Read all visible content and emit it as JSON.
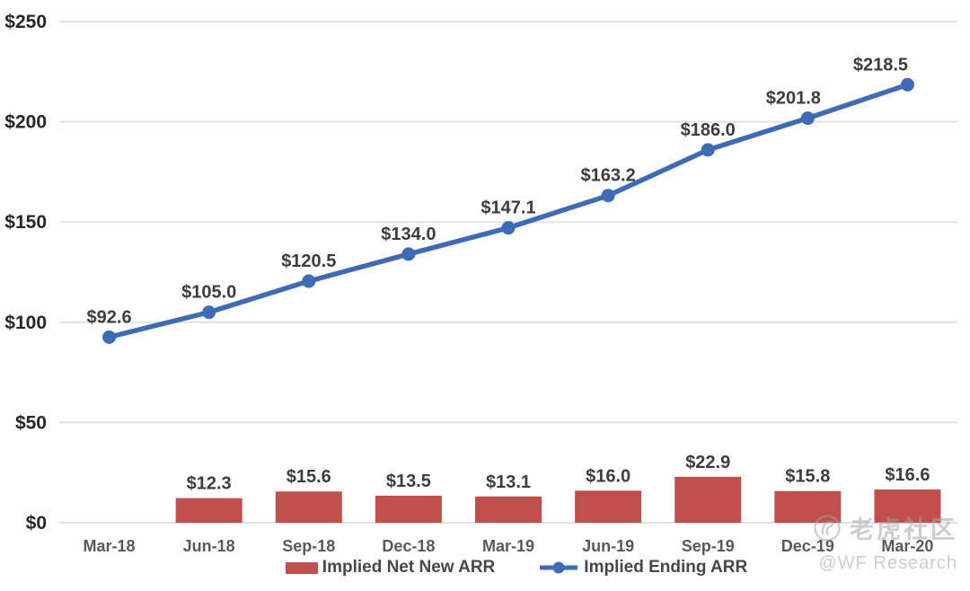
{
  "chart_data": {
    "type": "combo",
    "title": "",
    "categories": [
      "Mar-18",
      "Jun-18",
      "Sep-18",
      "Dec-18",
      "Mar-19",
      "Jun-19",
      "Sep-19",
      "Dec-19",
      "Mar-20"
    ],
    "series": [
      {
        "name": "Implied Net New ARR",
        "type": "bar",
        "color": "#c1504c",
        "values": [
          null,
          12.3,
          15.6,
          13.5,
          13.1,
          16.0,
          22.9,
          15.8,
          16.6
        ]
      },
      {
        "name": "Implied Ending ARR",
        "type": "line",
        "color": "#3f6bb6",
        "values": [
          92.6,
          105.0,
          120.5,
          134.0,
          147.1,
          163.2,
          186.0,
          201.8,
          218.5
        ]
      }
    ],
    "y_axis": {
      "min": 0,
      "max": 250,
      "step": 50,
      "tick_labels": [
        "$0",
        "$50",
        "$100",
        "$150",
        "$200",
        "$250"
      ]
    },
    "value_label_format": "$%.1f",
    "grid": true,
    "legend_position": "bottom"
  },
  "legend": {
    "items": [
      {
        "label": "Implied Net New ARR",
        "marker": "bar"
      },
      {
        "label": "Implied Ending ARR",
        "marker": "line-dot"
      }
    ]
  },
  "watermark": {
    "community_name": "老虎社区",
    "handle": "@WF Research"
  },
  "colors": {
    "bar": "#c1504c",
    "line": "#3f6bb6",
    "grid": "#e2e2e2",
    "axis_text": "#595959",
    "tick_text": "#262626",
    "data_label": "#3d3d3d"
  }
}
